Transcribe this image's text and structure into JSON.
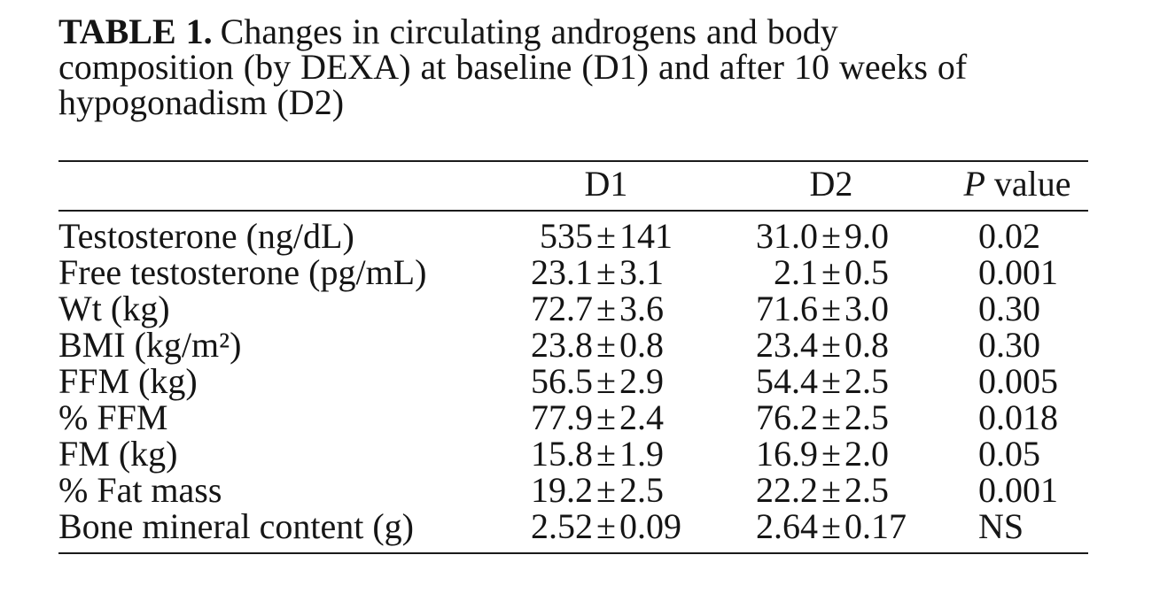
{
  "title": {
    "label": "TABLE 1.",
    "line1": "Changes in circulating androgens and body",
    "line2": "composition (by DEXA) at baseline (D1) and after 10 weeks of",
    "line3": "hypogonadism (D2)"
  },
  "table": {
    "plus_minus": "±",
    "header": {
      "d1": "D1",
      "d2": "D2",
      "p_italic": "P",
      "p_rest": "value"
    },
    "rows": [
      {
        "param": "Testosterone (ng/dL)",
        "d1_mean": "535",
        "d1_sd": "141",
        "d2_mean": "31.0",
        "d2_sd": "9.0",
        "p": "0.02"
      },
      {
        "param": "Free testosterone (pg/mL)",
        "d1_mean": "23.1",
        "d1_sd": "3.1",
        "d2_mean": "2.1",
        "d2_sd": "0.5",
        "p": "0.001"
      },
      {
        "param": "Wt (kg)",
        "d1_mean": "72.7",
        "d1_sd": "3.6",
        "d2_mean": "71.6",
        "d2_sd": "3.0",
        "p": "0.30"
      },
      {
        "param": "BMI (kg/m²)",
        "d1_mean": "23.8",
        "d1_sd": "0.8",
        "d2_mean": "23.4",
        "d2_sd": "0.8",
        "p": "0.30"
      },
      {
        "param": "FFM (kg)",
        "d1_mean": "56.5",
        "d1_sd": "2.9",
        "d2_mean": "54.4",
        "d2_sd": "2.5",
        "p": "0.005"
      },
      {
        "param": "% FFM",
        "d1_mean": "77.9",
        "d1_sd": "2.4",
        "d2_mean": "76.2",
        "d2_sd": "2.5",
        "p": "0.018"
      },
      {
        "param": "FM (kg)",
        "d1_mean": "15.8",
        "d1_sd": "1.9",
        "d2_mean": "16.9",
        "d2_sd": "2.0",
        "p": "0.05"
      },
      {
        "param": "% Fat mass",
        "d1_mean": "19.2",
        "d1_sd": "2.5",
        "d2_mean": "22.2",
        "d2_sd": "2.5",
        "p": "0.001"
      },
      {
        "param": "Bone mineral content (g)",
        "d1_mean": "2.52",
        "d1_sd": "0.09",
        "d2_mean": "2.64",
        "d2_sd": "0.17",
        "p": "NS"
      }
    ]
  }
}
